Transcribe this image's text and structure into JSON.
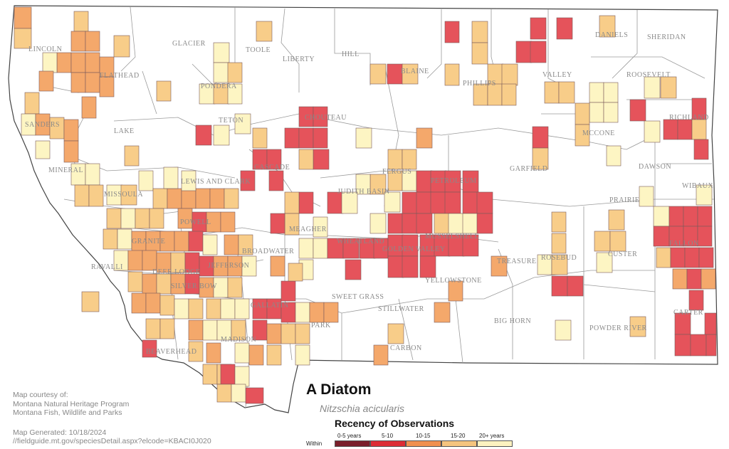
{
  "title": "A Diatom",
  "scientific_name": "Nitzschia acicularis",
  "legend": {
    "title": "Recency of Observations",
    "prefix": "Within",
    "classes": [
      {
        "label": "0-5 years",
        "color": "#7a1f2b"
      },
      {
        "label": "5-10",
        "color": "#dc2d35"
      },
      {
        "label": "10-15",
        "color": "#f0904f"
      },
      {
        "label": "15-20",
        "color": "#f5c47e"
      },
      {
        "label": "20+ years",
        "color": "#fdf2c0"
      }
    ]
  },
  "credits": {
    "courtesy": "Map courtesy of:",
    "org1": "Montana Natural Heritage Program",
    "org2": "Montana Fish, Wildlife and Parks",
    "generated": "Map Generated: 10/18/2024",
    "url": "//fieldguide.mt.gov/speciesDetail.aspx?elcode=KBACI0J020"
  },
  "map_colors": {
    "red": "#e5535b",
    "orange": "#f4a86b",
    "light_orange": "#f8cd89",
    "pale": "#fdf5c3",
    "outline": "#444444",
    "county_line": "#9a9a9a",
    "label": "#8a8a8a"
  },
  "counties": [
    "LINCOLN",
    "FLATHEAD",
    "GLACIER",
    "TOOLE",
    "LIBERTY",
    "HILL",
    "BLAINE",
    "PHILLIPS",
    "VALLEY",
    "DANIELS",
    "SHERIDAN",
    "ROOSEVELT",
    "RICHLAND",
    "SANDERS",
    "LAKE",
    "PONDERA",
    "TETON",
    "CHOUTEAU",
    "MCCONE",
    "MINERAL",
    "MISSOULA",
    "LEWIS AND CLARK",
    "CASCADE",
    "FERGUS",
    "PETROLEUM",
    "GARFIELD",
    "DAWSON",
    "WIBAUX",
    "PRAIRIE",
    "JUDITH BASIN",
    "POWELL",
    "MEAGHER",
    "GRANITE",
    "BROADWATER",
    "WHEATLAND",
    "GOLDEN VALLEY",
    "MUSSELSHELL",
    "FALLON",
    "CUSTER",
    "RAVALLI",
    "DEER LODGE",
    "JEFFERSON",
    "SILVER BOW",
    "ROSEBUD",
    "TREASURE",
    "YELLOWSTONE",
    "GALLATIN",
    "SWEET GRASS",
    "STILLWATER",
    "PARK",
    "CARTER",
    "BIG HORN",
    "POWDER RIVER",
    "CARBON",
    "MADISON",
    "BEAVERHEAD"
  ]
}
